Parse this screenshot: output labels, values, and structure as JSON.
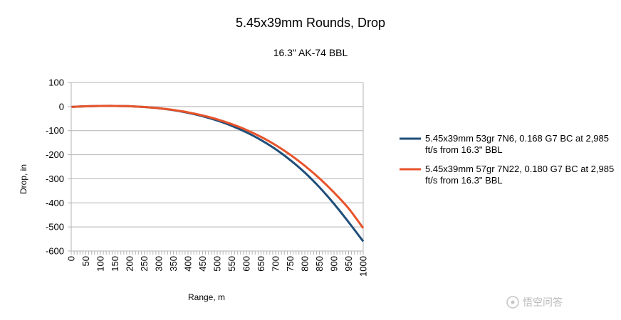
{
  "chart_data": {
    "type": "line",
    "title": "5.45x39mm Rounds, Drop",
    "subtitle": "16.3\" AK-74 BBL",
    "xlabel": "Range, m",
    "ylabel": "Drop, in",
    "xlim": [
      0,
      1000
    ],
    "ylim": [
      -600,
      100
    ],
    "x_ticks": [
      "0",
      "50",
      "100",
      "150",
      "200",
      "250",
      "300",
      "350",
      "400",
      "450",
      "500",
      "550",
      "600",
      "650",
      "700",
      "750",
      "800",
      "850",
      "900",
      "950",
      "1000"
    ],
    "y_ticks": [
      "100",
      "0",
      "-100",
      "-200",
      "-300",
      "-400",
      "-500",
      "-600"
    ],
    "grid": "horizontal",
    "legend_position": "right",
    "series": [
      {
        "name": "5.45x39mm 53gr 7N6, 0.168 G7 BC at 2,985 ft/s from 16.3\" BBL",
        "color": "#1f4e79",
        "x": [
          0,
          50,
          100,
          150,
          200,
          250,
          300,
          350,
          400,
          450,
          500,
          550,
          600,
          650,
          700,
          750,
          800,
          850,
          900,
          950,
          1000
        ],
        "y": [
          -1.5,
          1,
          2.5,
          2.7,
          1.5,
          -2,
          -7,
          -15,
          -26,
          -40,
          -58,
          -80,
          -107,
          -139,
          -177,
          -222,
          -274,
          -335,
          -404,
          -480,
          -560
        ]
      },
      {
        "name": "5.45x39mm 57gr 7N22, 0.180 G7 BC at 2,985 ft/s from 16.3\" BBL",
        "color": "#e8532b",
        "x": [
          0,
          50,
          100,
          150,
          200,
          250,
          300,
          350,
          400,
          450,
          500,
          550,
          600,
          650,
          700,
          750,
          800,
          850,
          900,
          950,
          1000
        ],
        "y": [
          -1.5,
          1,
          2.5,
          2.7,
          1.5,
          -2,
          -7,
          -14,
          -24,
          -37,
          -53,
          -73,
          -97,
          -126,
          -160,
          -200,
          -246,
          -298,
          -357,
          -423,
          -505
        ]
      }
    ]
  },
  "watermark": {
    "text": "悟空问答"
  }
}
